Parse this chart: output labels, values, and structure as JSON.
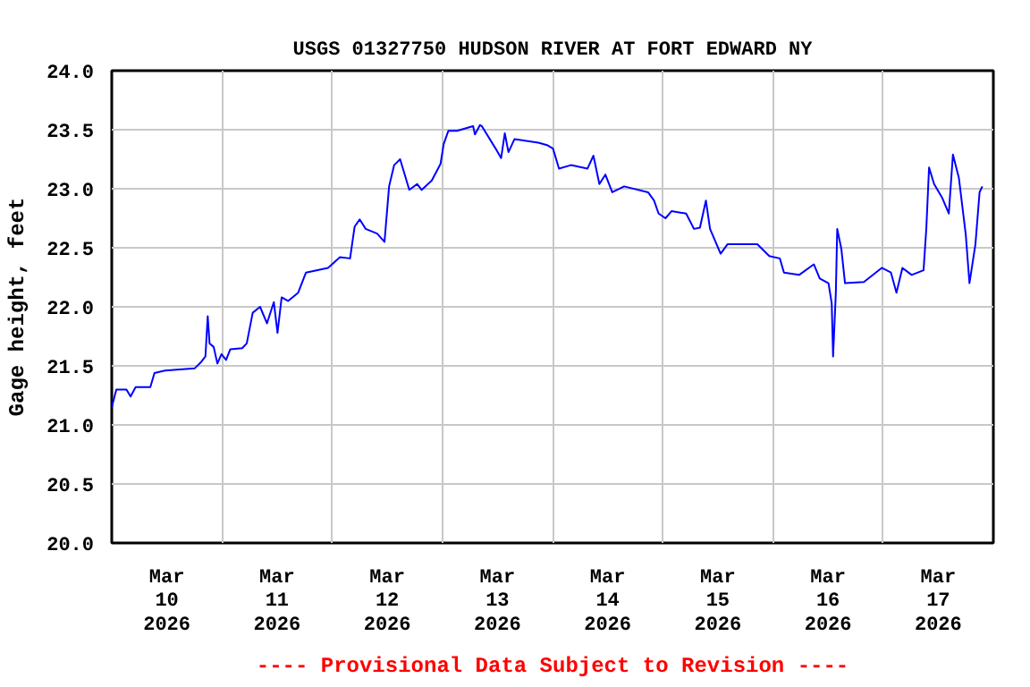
{
  "chart_data": {
    "type": "line",
    "title": "USGS 01327750 HUDSON RIVER AT FORT EDWARD NY",
    "ylabel": "Gage height, feet",
    "annotations": [
      "---- Provisional Data Subject to Revision ----"
    ],
    "x": [
      "2026-03-10T00:00",
      "2026-03-10T01:00",
      "2026-03-10T03:12",
      "2026-03-10T04:06",
      "2026-03-10T05:12",
      "2026-03-10T08:24",
      "2026-03-10T09:18",
      "2026-03-10T11:36",
      "2026-03-10T18:06",
      "2026-03-10T19:24",
      "2026-03-10T20:24",
      "2026-03-10T20:54",
      "2026-03-10T21:18",
      "2026-03-10T22:12",
      "2026-03-10T23:00",
      "2026-03-10T23:54",
      "2026-03-11T00:54",
      "2026-03-11T01:48",
      "2026-03-11T04:24",
      "2026-03-11T05:24",
      "2026-03-11T06:42",
      "2026-03-11T08:18",
      "2026-03-11T09:48",
      "2026-03-11T11:18",
      "2026-03-11T12:06",
      "2026-03-11T13:00",
      "2026-03-11T14:24",
      "2026-03-11T16:36",
      "2026-03-11T18:18",
      "2026-03-11T23:06",
      "2026-03-12T01:42",
      "2026-03-12T03:54",
      "2026-03-12T04:54",
      "2026-03-12T06:00",
      "2026-03-12T07:18",
      "2026-03-12T09:48",
      "2026-03-12T11:24",
      "2026-03-12T12:24",
      "2026-03-12T13:30",
      "2026-03-12T14:48",
      "2026-03-12T16:48",
      "2026-03-12T18:30",
      "2026-03-12T19:30",
      "2026-03-12T21:42",
      "2026-03-12T23:36",
      "2026-03-13T00:18",
      "2026-03-13T01:18",
      "2026-03-13T03:12",
      "2026-03-13T06:42",
      "2026-03-13T07:06",
      "2026-03-13T08:12",
      "2026-03-13T08:36",
      "2026-03-13T11:36",
      "2026-03-13T12:48",
      "2026-03-13T13:36",
      "2026-03-13T14:24",
      "2026-03-13T15:42",
      "2026-03-13T20:54",
      "2026-03-13T22:48",
      "2026-03-14T00:06",
      "2026-03-14T01:24",
      "2026-03-14T04:00",
      "2026-03-14T07:36",
      "2026-03-14T08:54",
      "2026-03-14T10:12",
      "2026-03-14T11:30",
      "2026-03-14T13:00",
      "2026-03-14T15:36",
      "2026-03-14T20:48",
      "2026-03-14T22:06",
      "2026-03-14T23:06",
      "2026-03-15T00:36",
      "2026-03-15T01:54",
      "2026-03-15T05:06",
      "2026-03-15T06:48",
      "2026-03-15T08:06",
      "2026-03-15T09:24",
      "2026-03-15T10:18",
      "2026-03-15T12:36",
      "2026-03-15T14:06",
      "2026-03-15T20:36",
      "2026-03-15T23:12",
      "2026-03-16T01:30",
      "2026-03-16T02:24",
      "2026-03-16T05:42",
      "2026-03-16T08:54",
      "2026-03-16T10:12",
      "2026-03-16T12:06",
      "2026-03-16T12:48",
      "2026-03-16T13:06",
      "2026-03-16T13:42",
      "2026-03-16T14:00",
      "2026-03-16T14:54",
      "2026-03-16T15:42",
      "2026-03-16T19:48",
      "2026-03-16T23:42",
      "2026-03-17T01:42",
      "2026-03-17T02:54",
      "2026-03-17T04:12",
      "2026-03-17T06:12",
      "2026-03-17T08:48",
      "2026-03-17T09:24",
      "2026-03-17T10:00",
      "2026-03-17T11:06",
      "2026-03-17T12:54",
      "2026-03-17T14:18",
      "2026-03-17T15:12",
      "2026-03-17T16:30",
      "2026-03-17T18:00",
      "2026-03-17T18:48",
      "2026-03-17T20:06",
      "2026-03-17T21:00",
      "2026-03-17T21:36"
    ],
    "series": [
      {
        "color": "#0000ff",
        "values": [
          21.15,
          21.3,
          21.3,
          21.24,
          21.32,
          21.32,
          21.44,
          21.46,
          21.48,
          21.53,
          21.58,
          21.92,
          21.69,
          21.66,
          21.52,
          21.6,
          21.55,
          21.64,
          21.65,
          21.69,
          21.95,
          22.0,
          21.86,
          22.04,
          21.78,
          22.08,
          22.05,
          22.12,
          22.29,
          22.33,
          22.42,
          22.41,
          22.68,
          22.74,
          22.66,
          22.62,
          22.55,
          23.02,
          23.2,
          23.25,
          22.99,
          23.04,
          22.99,
          23.07,
          23.21,
          23.38,
          23.49,
          23.49,
          23.53,
          23.46,
          23.54,
          23.53,
          23.34,
          23.26,
          23.47,
          23.31,
          23.42,
          23.39,
          23.37,
          23.34,
          23.17,
          23.2,
          23.17,
          23.28,
          23.04,
          23.12,
          22.97,
          23.02,
          22.97,
          22.9,
          22.79,
          22.75,
          22.81,
          22.79,
          22.66,
          22.67,
          22.9,
          22.66,
          22.45,
          22.53,
          22.53,
          22.43,
          22.41,
          22.29,
          22.27,
          22.36,
          22.24,
          22.2,
          22.03,
          21.58,
          22.12,
          22.66,
          22.49,
          22.2,
          22.21,
          22.33,
          22.29,
          22.12,
          22.33,
          22.27,
          22.31,
          22.66,
          23.18,
          23.04,
          22.92,
          22.79,
          23.29,
          23.09,
          22.61,
          22.2,
          22.53,
          22.97,
          23.02
        ]
      }
    ],
    "xlim": [
      "2026-03-10T00:00",
      "2026-03-18T00:00"
    ],
    "xticks": [
      {
        "value": "2026-03-10T12:00",
        "label": "Mar\n10\n2026"
      },
      {
        "value": "2026-03-11T12:00",
        "label": "Mar\n11\n2026"
      },
      {
        "value": "2026-03-12T12:00",
        "label": "Mar\n12\n2026"
      },
      {
        "value": "2026-03-13T12:00",
        "label": "Mar\n13\n2026"
      },
      {
        "value": "2026-03-14T12:00",
        "label": "Mar\n14\n2026"
      },
      {
        "value": "2026-03-15T12:00",
        "label": "Mar\n15\n2026"
      },
      {
        "value": "2026-03-16T12:00",
        "label": "Mar\n16\n2026"
      },
      {
        "value": "2026-03-17T12:00",
        "label": "Mar\n17\n2026"
      },
      {
        "value": "2026-03-11T00:00",
        "label": null
      },
      {
        "value": "2026-03-12T00:00",
        "label": null
      },
      {
        "value": "2026-03-13T00:00",
        "label": null
      },
      {
        "value": "2026-03-14T00:00",
        "label": null
      },
      {
        "value": "2026-03-15T00:00",
        "label": null
      },
      {
        "value": "2026-03-16T00:00",
        "label": null
      },
      {
        "value": "2026-03-17T00:00",
        "label": null
      }
    ],
    "ylim": [
      20.0,
      24.0
    ],
    "yticks": [
      {
        "value": 20.0,
        "label": "20.0"
      },
      {
        "value": 20.5,
        "label": "20.5"
      },
      {
        "value": 21.0,
        "label": "21.0"
      },
      {
        "value": 21.5,
        "label": "21.5"
      },
      {
        "value": 22.0,
        "label": "22.0"
      },
      {
        "value": 22.5,
        "label": "22.5"
      },
      {
        "value": 23.0,
        "label": "23.0"
      },
      {
        "value": 23.5,
        "label": "23.5"
      },
      {
        "value": 24.0,
        "label": "24.0"
      }
    ],
    "grid": true,
    "line_style": "solid"
  }
}
